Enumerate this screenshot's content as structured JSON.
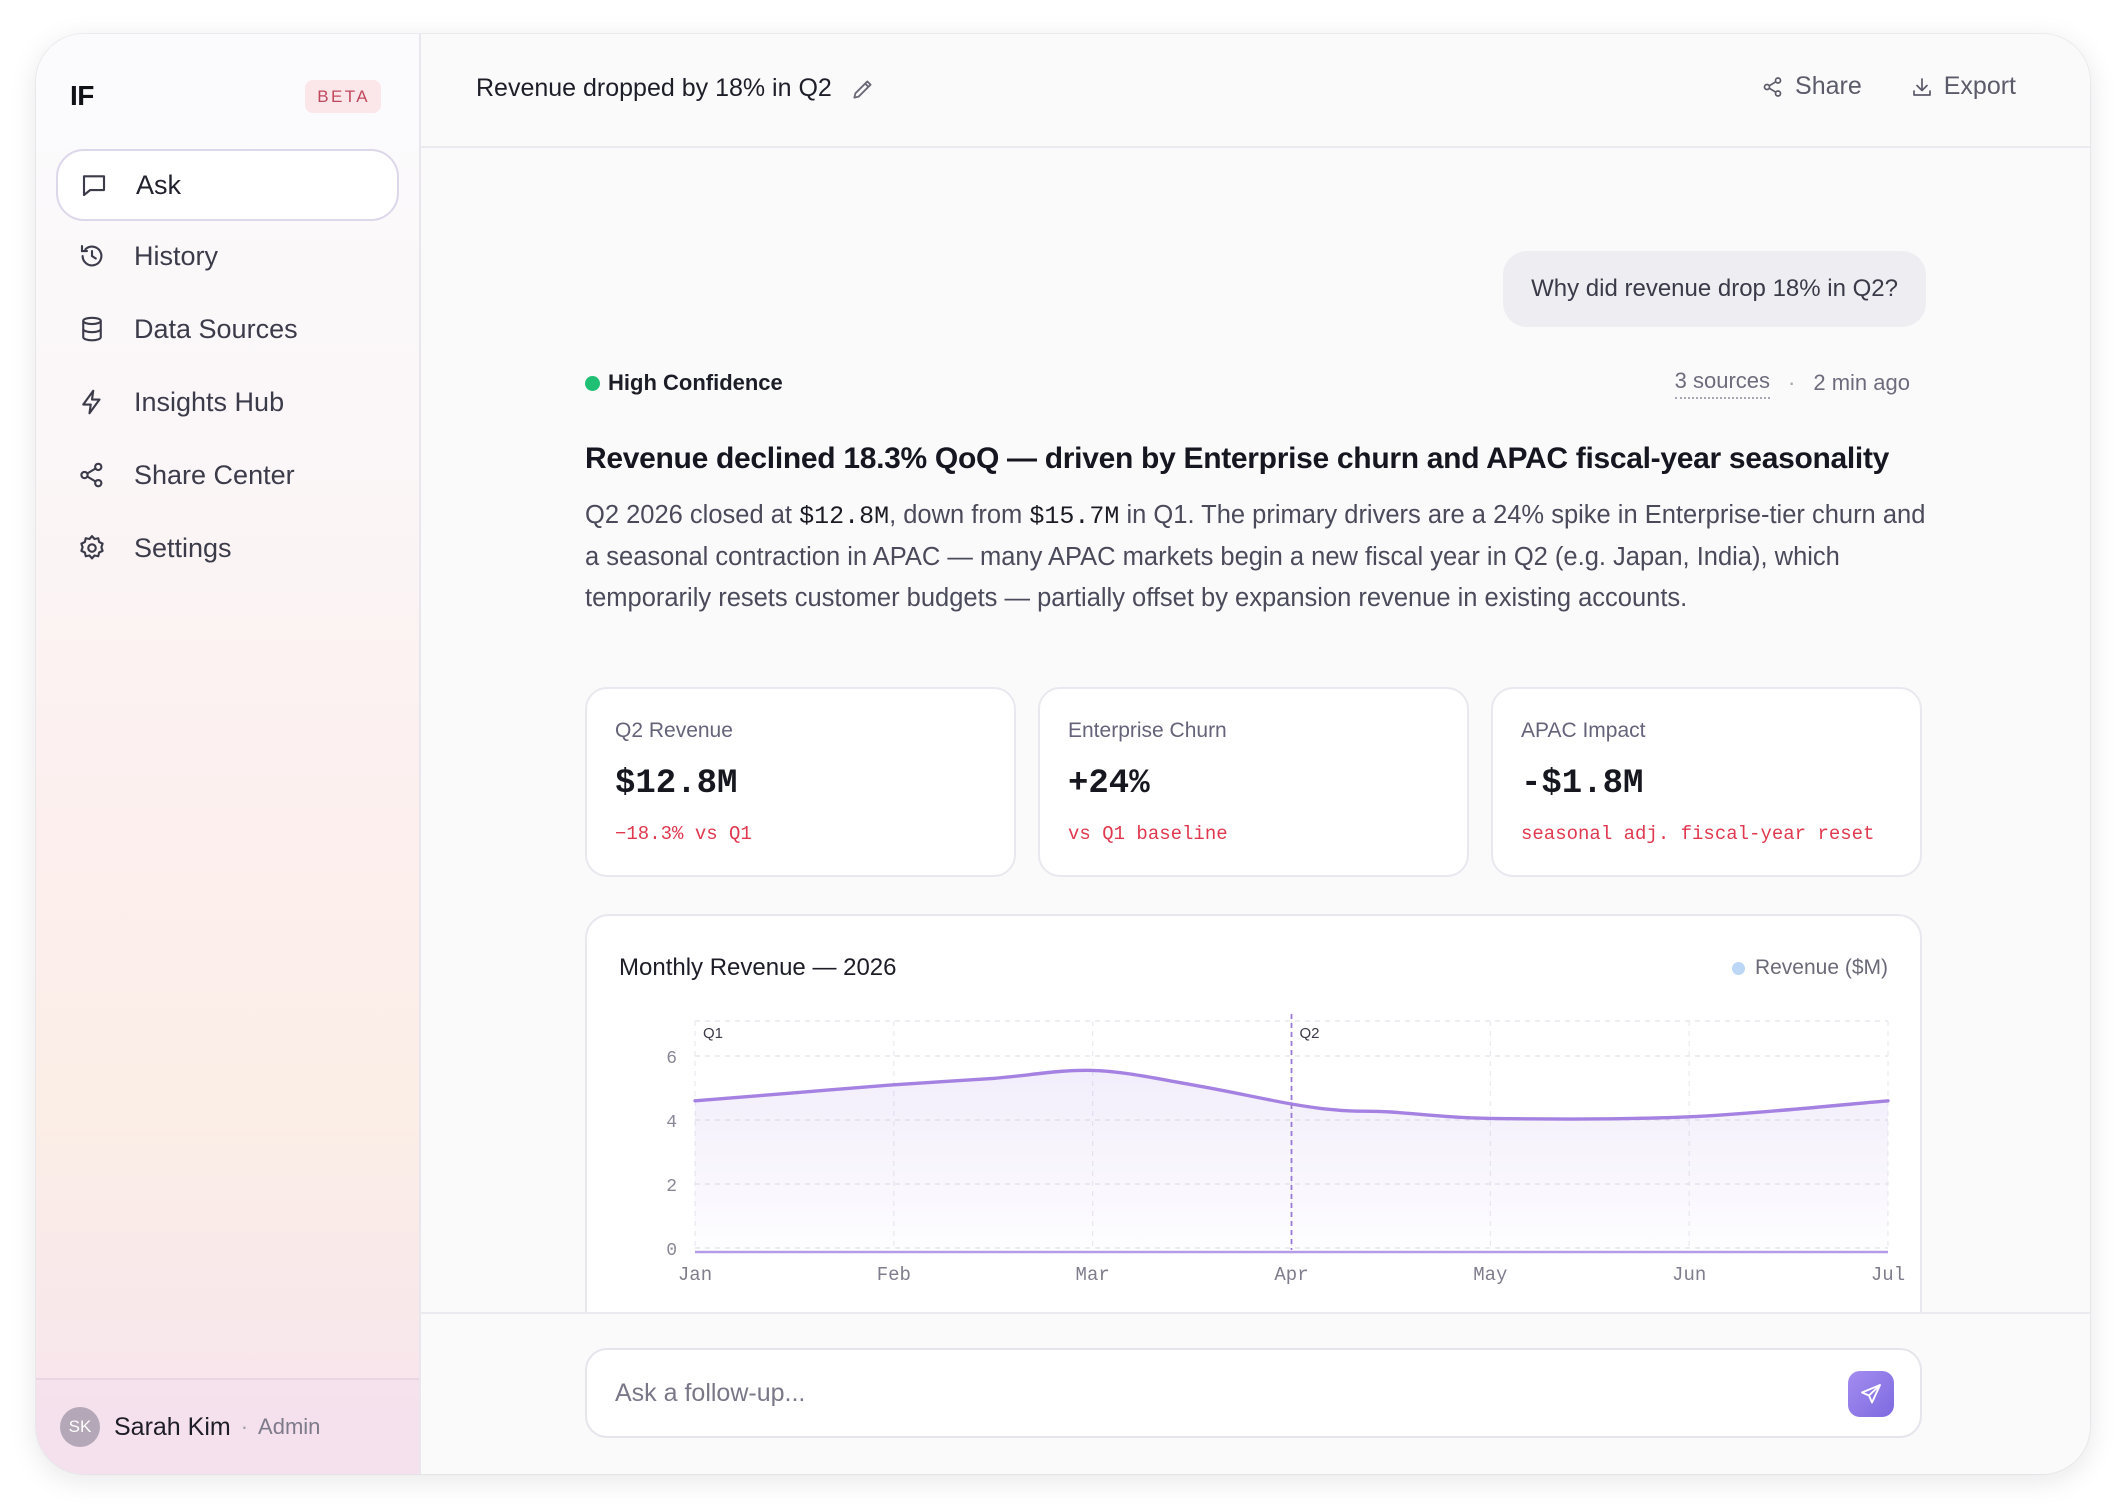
{
  "app": {
    "logo": "IF",
    "badge": "BETA"
  },
  "sidebar": {
    "items": [
      {
        "label": "Ask",
        "icon": "message-square-icon",
        "active": true
      },
      {
        "label": "History",
        "icon": "history-icon"
      },
      {
        "label": "Data Sources",
        "icon": "database-icon"
      },
      {
        "label": "Insights Hub",
        "icon": "lightning-icon"
      },
      {
        "label": "Share Center",
        "icon": "share-icon"
      },
      {
        "label": "Settings",
        "icon": "gear-icon"
      }
    ],
    "user": {
      "initials": "SK",
      "name": "Sarah Kim",
      "role": "Admin"
    }
  },
  "header": {
    "title": "Revenue dropped by 18% in Q2",
    "share_label": "Share",
    "export_label": "Export"
  },
  "conversation": {
    "user_message": "Why did revenue drop 18% in Q2?",
    "answer": {
      "confidence": "High Confidence",
      "confidence_color": "#1fbf74",
      "sources": "3 sources",
      "time": "2 min ago",
      "headline": "Revenue declined 18.3% QoQ — driven by Enterprise churn and APAC fiscal-year seasonality",
      "body": {
        "p1": "Q2 2026 closed at ",
        "v1": "$12.8M",
        "p2": ", down from ",
        "v2": "$15.7M",
        "p3": " in Q1. The primary drivers are a 24% spike in Enterprise-tier churn and a seasonal contraction in APAC — many APAC markets begin a new fiscal year in Q2 (e.g. Japan, India), which temporarily resets customer budgets — partially offset by expansion revenue in existing accounts."
      },
      "metrics": [
        {
          "label": "Q2 Revenue",
          "value": "$12.8M",
          "sub": "−18.3% vs Q1"
        },
        {
          "label": "Enterprise Churn",
          "value": "+24%",
          "sub": "vs Q1 baseline"
        },
        {
          "label": "APAC Impact",
          "value": "-$1.8M",
          "sub": "seasonal adj. fiscal-year reset"
        }
      ]
    }
  },
  "chart_data": {
    "type": "area",
    "title": "Monthly Revenue — 2026",
    "legend": "Revenue ($M)",
    "legend_placement": "top-right",
    "categories": [
      "Jan",
      "Feb",
      "Mar",
      "Apr",
      "May",
      "Jun",
      "Jul"
    ],
    "x": [
      0,
      0.5,
      1,
      1.5,
      2,
      2.5,
      3,
      3.25,
      3.5,
      4,
      5,
      6
    ],
    "values": [
      4.6,
      4.85,
      5.1,
      5.3,
      5.55,
      5.1,
      4.5,
      4.3,
      4.25,
      4.05,
      4.1,
      4.6
    ],
    "ylim": [
      0,
      7
    ],
    "yticks": [
      0,
      2,
      4,
      6
    ],
    "annotations": [
      {
        "label": "Q1",
        "x": 0
      },
      {
        "label": "Q2",
        "x": 3
      }
    ],
    "grid": true,
    "line_color": "#a582e2"
  },
  "composer": {
    "placeholder": "Ask a follow-up..."
  }
}
